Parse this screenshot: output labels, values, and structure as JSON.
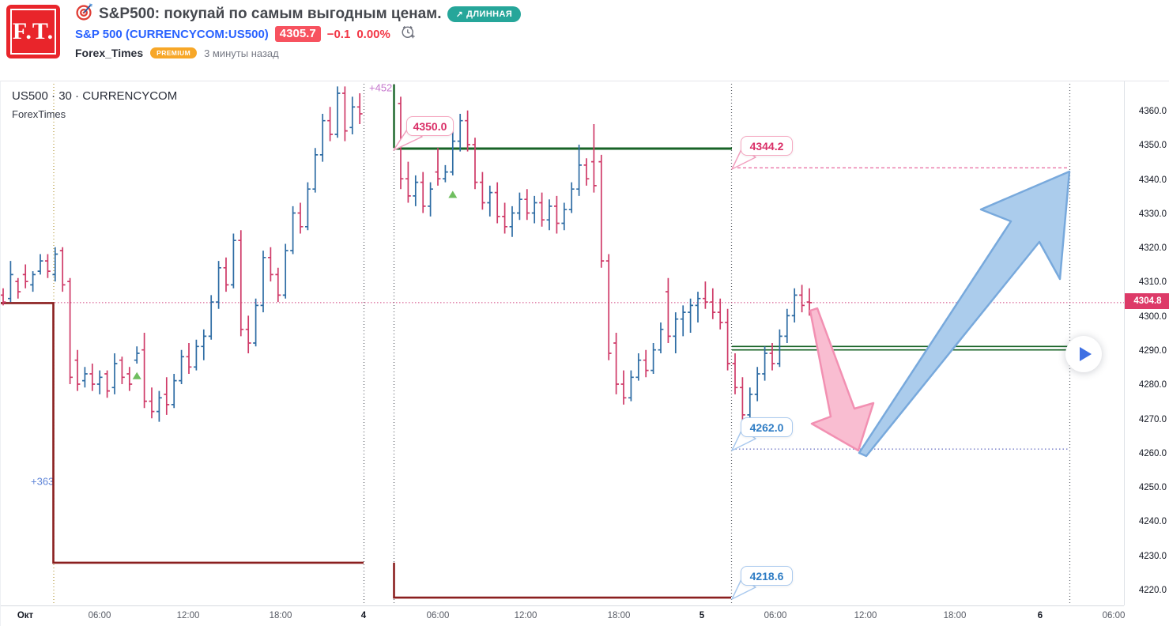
{
  "header": {
    "logo_text": "F.T.",
    "title": "S&P500: покупай по самым выгодным ценам.",
    "badge": {
      "arrow": "↗",
      "label": "ДЛИННАЯ",
      "color": "#26a69a"
    },
    "ticker": {
      "symbol_text": "S&P 500 (CURRENCYCOM:US500)",
      "price": "4305.7",
      "change": "−0.1",
      "change_pct": "0.00%",
      "price_badge_color": "#f7525f",
      "change_color": "#f23645",
      "link_color": "#2962ff"
    },
    "author": {
      "name": "Forex_Times",
      "premium_label": "PREMIUM",
      "time_ago": "3 минуты назад"
    }
  },
  "chart": {
    "legend": {
      "line1": "US500 · 30 · CURRENCYCOM",
      "line2": "ForexTimes"
    },
    "labels": {
      "entry": "4350.0",
      "target_high": "4344.2",
      "target_low": "4262.0",
      "stop": "4218.6"
    },
    "last_price_label": "4304.8"
  },
  "chart_data": {
    "type": "ohlc-bar",
    "symbol": "US500",
    "interval": "30",
    "exchange": "CURRENCYCOM",
    "ylim": [
      4215,
      4369
    ],
    "y_ticks": [
      4360,
      4350,
      4340,
      4330,
      4320,
      4310,
      4300,
      4290,
      4280,
      4270,
      4260,
      4250,
      4240,
      4230,
      4220
    ],
    "x_ticks": [
      {
        "label": "Окт",
        "major": true
      },
      {
        "label": "06:00",
        "major": false
      },
      {
        "label": "12:00",
        "major": false
      },
      {
        "label": "18:00",
        "major": false
      },
      {
        "label": "4",
        "major": true
      },
      {
        "label": "06:00",
        "major": false
      },
      {
        "label": "12:00",
        "major": false
      },
      {
        "label": "18:00",
        "major": false
      },
      {
        "label": "5",
        "major": true
      },
      {
        "label": "06:00",
        "major": false
      },
      {
        "label": "12:00",
        "major": false
      },
      {
        "label": "18:00",
        "major": false
      },
      {
        "label": "6",
        "major": true
      },
      {
        "label": "06:00",
        "major": false
      }
    ],
    "last_price": 4304.8,
    "levels": [
      {
        "name": "entry-resistance",
        "price": 4350.0,
        "style": "solid-green"
      },
      {
        "name": "target-high",
        "price": 4344.2,
        "style": "dashed-pink"
      },
      {
        "name": "support-zone",
        "price_top": 4292.0,
        "price_bottom": 4291.0,
        "style": "double-green"
      },
      {
        "name": "target-low",
        "price": 4262.0,
        "style": "dotted-violet"
      },
      {
        "name": "stop-step-left",
        "price_top": 4304.7,
        "price_bottom": 4228.8,
        "style": "dark-red-step"
      },
      {
        "name": "stop-step-right",
        "price": 4218.6,
        "style": "dark-red-step"
      }
    ],
    "markers": [
      {
        "type": "up-triangle",
        "session": 0,
        "bar": 18,
        "price": 4284.5
      },
      {
        "type": "up-triangle",
        "session": 1,
        "bar": 7,
        "price": 4337.5
      }
    ],
    "annotations": [
      {
        "text": "+452",
        "price": 4367.5,
        "color": "#c678cd"
      },
      {
        "text": "+363",
        "price": 4252.5,
        "color": "#5f85d8"
      }
    ],
    "colors": {
      "bar_up": "#2e6ca4",
      "bar_down": "#cf3a68",
      "entry_line": "#176326",
      "stop_line": "#8a1f1f",
      "target_dashed": "#e8699f",
      "mid_dotted": "#8a90d0",
      "last_price_line": "#d1437f",
      "last_price_badge": "#dd3a68",
      "session_line": "#5b5f66",
      "month_line": "#b39a3e",
      "arrow_up_fill": "#abccec",
      "arrow_up_stroke": "#78a9dc",
      "arrow_down_fill": "#f9bdd1",
      "arrow_down_stroke": "#f290b2",
      "marker": "#6fbe5f"
    },
    "sessions": [
      {
        "bars": [
          [
            4307,
            4309,
            4304,
            4305
          ],
          [
            4306,
            4317,
            4305,
            4313
          ],
          [
            4311,
            4312,
            4306,
            4308
          ],
          [
            4313,
            4316,
            4309,
            4311
          ],
          [
            4310,
            4314,
            4308,
            4313
          ],
          [
            4314,
            4319,
            4313,
            4317
          ],
          [
            4317,
            4319,
            4312,
            4314
          ],
          [
            4313,
            4321,
            4311,
            4319
          ],
          [
            4320,
            4321,
            4308,
            4310
          ],
          [
            4311,
            4312,
            4281,
            4283
          ],
          [
            4288,
            4291,
            4279,
            4281
          ],
          [
            4282,
            4286,
            4280,
            4284
          ],
          [
            4284,
            4287,
            4279,
            4281
          ],
          [
            4281,
            4285,
            4278,
            4283
          ],
          [
            4284,
            4285,
            4277,
            4279
          ],
          [
            4280,
            4290,
            4278,
            4287
          ],
          [
            4288,
            4289,
            4281,
            4283
          ],
          [
            4284,
            4286,
            4279,
            4281
          ],
          [
            4288,
            4292,
            4287,
            4290
          ],
          [
            4291,
            4296,
            4274,
            4276
          ],
          [
            4276,
            4280,
            4271,
            4273
          ],
          [
            4273,
            4279,
            4270,
            4277
          ],
          [
            4278,
            4283,
            4272,
            4275
          ],
          [
            4275,
            4284,
            4274,
            4282
          ],
          [
            4282,
            4291,
            4281,
            4289
          ],
          [
            4289,
            4293,
            4284,
            4286
          ],
          [
            4286,
            4294,
            4285,
            4292
          ],
          [
            4292,
            4297,
            4288,
            4295
          ],
          [
            4295,
            4307,
            4294,
            4305
          ],
          [
            4305,
            4317,
            4303,
            4315
          ],
          [
            4315,
            4318,
            4308,
            4310
          ],
          [
            4310,
            4325,
            4309,
            4323
          ],
          [
            4323,
            4326,
            4295,
            4297
          ],
          [
            4297,
            4301,
            4290,
            4293
          ],
          [
            4293,
            4306,
            4292,
            4304
          ],
          [
            4304,
            4320,
            4302,
            4318
          ],
          [
            4318,
            4321,
            4311,
            4313
          ],
          [
            4313,
            4315,
            4305,
            4307
          ],
          [
            4307,
            4322,
            4306,
            4320
          ],
          [
            4320,
            4333,
            4319,
            4331
          ],
          [
            4331,
            4334,
            4325,
            4327
          ],
          [
            4327,
            4340,
            4326,
            4338
          ],
          [
            4338,
            4350,
            4337,
            4348
          ],
          [
            4348,
            4360,
            4346,
            4358
          ],
          [
            4358,
            4362,
            4352,
            4354
          ],
          [
            4354,
            4368,
            4353,
            4366
          ],
          [
            4366,
            4368,
            4352,
            4355
          ],
          [
            4356,
            4365,
            4354,
            4362
          ],
          [
            4362,
            4366,
            4357,
            4360
          ]
        ]
      },
      {
        "bars": [
          [
            4363,
            4365,
            4338,
            4341
          ],
          [
            4341,
            4346,
            4334,
            4336
          ],
          [
            4336,
            4342,
            4333,
            4340
          ],
          [
            4340,
            4343,
            4331,
            4333
          ],
          [
            4333,
            4340,
            4330,
            4338
          ],
          [
            4343,
            4350,
            4339,
            4341
          ],
          [
            4341,
            4345,
            4340,
            4343
          ],
          [
            4343,
            4355,
            4342,
            4352
          ],
          [
            4352,
            4360,
            4349,
            4358
          ],
          [
            4358,
            4361,
            4349,
            4351
          ],
          [
            4351,
            4353,
            4338,
            4340
          ],
          [
            4340,
            4343,
            4332,
            4334
          ],
          [
            4334,
            4339,
            4330,
            4337
          ],
          [
            4337,
            4340,
            4328,
            4330
          ],
          [
            4330,
            4334,
            4325,
            4327
          ],
          [
            4327,
            4333,
            4324,
            4331
          ],
          [
            4331,
            4337,
            4329,
            4335
          ],
          [
            4335,
            4338,
            4329,
            4331
          ],
          [
            4331,
            4336,
            4328,
            4334
          ],
          [
            4334,
            4337,
            4327,
            4329
          ],
          [
            4329,
            4335,
            4326,
            4333
          ],
          [
            4333,
            4336,
            4325,
            4328
          ],
          [
            4328,
            4334,
            4326,
            4332
          ],
          [
            4332,
            4340,
            4331,
            4338
          ],
          [
            4338,
            4351,
            4336,
            4345
          ],
          [
            4345,
            4347,
            4339,
            4341
          ],
          [
            4346,
            4357,
            4337,
            4339
          ],
          [
            4346,
            4348,
            4315,
            4317
          ],
          [
            4317,
            4319,
            4288,
            4290
          ],
          [
            4293,
            4296,
            4278,
            4281
          ],
          [
            4281,
            4285,
            4275,
            4277
          ],
          [
            4277,
            4285,
            4276,
            4283
          ],
          [
            4283,
            4290,
            4282,
            4288
          ],
          [
            4288,
            4291,
            4283,
            4285
          ],
          [
            4285,
            4293,
            4284,
            4291
          ],
          [
            4291,
            4299,
            4290,
            4297
          ],
          [
            4308,
            4312,
            4293,
            4295
          ],
          [
            4295,
            4302,
            4290,
            4300
          ],
          [
            4300,
            4304,
            4295,
            4302
          ],
          [
            4302,
            4306,
            4296,
            4304
          ],
          [
            4304,
            4308,
            4299,
            4306
          ],
          [
            4306,
            4311,
            4303,
            4305
          ],
          [
            4305,
            4309,
            4300,
            4302
          ],
          [
            4302,
            4306,
            4297,
            4299
          ],
          [
            4299,
            4303,
            4285,
            4287
          ]
        ]
      },
      {
        "bars": [
          [
            4287,
            4290,
            4278,
            4280
          ],
          [
            4280,
            4283,
            4270,
            4272
          ],
          [
            4272,
            4280,
            4269,
            4278
          ],
          [
            4278,
            4286,
            4276,
            4284
          ],
          [
            4284,
            4292,
            4282,
            4290
          ],
          [
            4290,
            4293,
            4285,
            4287
          ],
          [
            4287,
            4297,
            4286,
            4295
          ],
          [
            4295,
            4303,
            4293,
            4301
          ],
          [
            4301,
            4309,
            4299,
            4307
          ],
          [
            4307,
            4310,
            4302,
            4304
          ],
          [
            4305,
            4309,
            4301,
            4304.8
          ]
        ]
      }
    ]
  }
}
